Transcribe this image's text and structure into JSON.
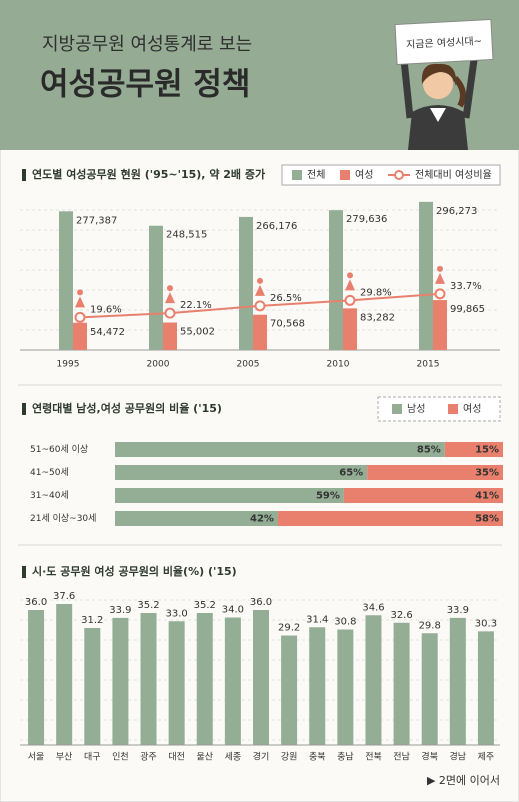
{
  "header": {
    "subtitle": "지방공무원 여성통계로 보는",
    "title": "여성공무원 정책",
    "sign": "지금은 여성시대~"
  },
  "chart_data": [
    {
      "type": "bar",
      "title": "연도별 여성공무원 현원 ('95~'15), 약 2배 증가",
      "categories": [
        "1995",
        "2000",
        "2005",
        "2010",
        "2015"
      ],
      "series": [
        {
          "name": "전체",
          "color": "#93ae94",
          "values": [
            277387,
            248515,
            266176,
            279636,
            296273
          ],
          "value_labels": [
            "277,387",
            "248,515",
            "266,176",
            "279,636",
            "296,273"
          ]
        },
        {
          "name": "여성",
          "color": "#e8806d",
          "values": [
            54472,
            55002,
            70568,
            83282,
            99865
          ],
          "value_labels": [
            "54,472",
            "55,002",
            "70,568",
            "83,282",
            "99,865"
          ]
        },
        {
          "name": "전체대비 여성비율",
          "type": "line",
          "axis": "y2",
          "color": "#e8806d",
          "values": [
            19.6,
            22.1,
            26.5,
            29.8,
            33.7
          ],
          "value_labels": [
            "19.6%",
            "22.1%",
            "26.5%",
            "29.8%",
            "33.7%"
          ]
        }
      ],
      "ylim": [
        0,
        300000
      ],
      "y2lim": [
        0,
        90
      ]
    },
    {
      "type": "stacked_bar",
      "orientation": "horizontal",
      "title": "연령대별 남성,여성 공무원의 비율 ('15)",
      "categories": [
        "51~60세 이상",
        "41~50세",
        "31~40세",
        "21세 이상~30세"
      ],
      "series": [
        {
          "name": "남성",
          "color": "#93ae94",
          "values": [
            85,
            65,
            59,
            42
          ],
          "value_labels": [
            "85%",
            "65%",
            "59%",
            "42%"
          ]
        },
        {
          "name": "여성",
          "color": "#e8806d",
          "values": [
            15,
            35,
            41,
            58
          ],
          "value_labels": [
            "15%",
            "35%",
            "41%",
            "58%"
          ]
        }
      ],
      "xlim": [
        0,
        100
      ]
    },
    {
      "type": "bar",
      "title": "시·도 공무원 여성 공무원의 비율(%) ('15)",
      "categories": [
        "서울",
        "부산",
        "대구",
        "인천",
        "광주",
        "대전",
        "울산",
        "세종",
        "경기",
        "강원",
        "충북",
        "충남",
        "전북",
        "전남",
        "경북",
        "경남",
        "제주"
      ],
      "series": [
        {
          "color": "#93ae94",
          "values": [
            36.0,
            37.6,
            31.2,
            33.9,
            35.2,
            33.0,
            35.2,
            34.0,
            36.0,
            29.2,
            31.4,
            30.8,
            34.6,
            32.6,
            29.8,
            33.9,
            30.3
          ],
          "value_labels": [
            "36.0",
            "37.6",
            "31.2",
            "33.9",
            "35.2",
            "33.0",
            "35.2",
            "34.0",
            "36.0",
            "29.2",
            "31.4",
            "30.8",
            "34.6",
            "32.6",
            "29.8",
            "33.9",
            "30.3"
          ]
        }
      ],
      "ylim": [
        0,
        40
      ]
    }
  ],
  "footer": {
    "note": "▶ 2면에 이어서"
  }
}
